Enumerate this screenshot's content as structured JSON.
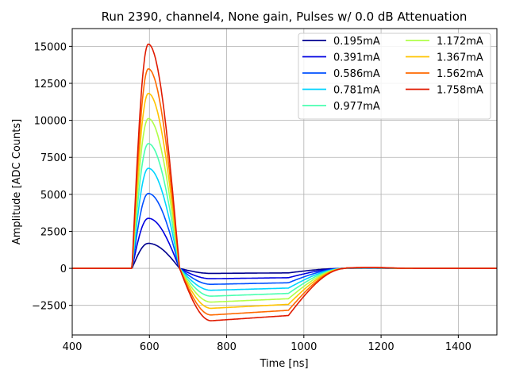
{
  "chart_data": {
    "type": "line",
    "title": "Run 2390, channel4, None gain, Pulses w/ 0.0 dB Attenuation",
    "xlabel": "Time [ns]",
    "ylabel": "Amplitude [ADC Counts]",
    "xlim": [
      400,
      1500
    ],
    "ylim": [
      -4500,
      16200
    ],
    "xticks": [
      400,
      600,
      800,
      1000,
      1200,
      1400
    ],
    "yticks": [
      -2500,
      0,
      2500,
      5000,
      7500,
      10000,
      12500,
      15000
    ],
    "xtick_labels": [
      "400",
      "600",
      "800",
      "1000",
      "1200",
      "1400"
    ],
    "ytick_labels": [
      "−2500",
      "0",
      "2500",
      "5000",
      "7500",
      "10000",
      "12500",
      "15000"
    ],
    "grid": true,
    "legend_position": "top-right",
    "legend_columns": 2,
    "pulse_shape": {
      "baseline_end": 555,
      "peak_time": 597,
      "zero_cross": 678,
      "trough_start": 760,
      "trough_end": 960,
      "recovery_end": 1110,
      "overshoot_time": 1170
    },
    "series": [
      {
        "name": "0.195mA",
        "color": "#00008f",
        "peak": 1690,
        "trough": -340
      },
      {
        "name": "0.391mA",
        "color": "#0000e0",
        "peak": 3380,
        "trough": -700
      },
      {
        "name": "0.586mA",
        "color": "#0050ff",
        "peak": 5060,
        "trough": -1080
      },
      {
        "name": "0.781mA",
        "color": "#00d4ff",
        "peak": 6760,
        "trough": -1480
      },
      {
        "name": "0.977mA",
        "color": "#4affb0",
        "peak": 8430,
        "trough": -1880
      },
      {
        "name": "1.172mA",
        "color": "#b0ff48",
        "peak": 10120,
        "trough": -2280
      },
      {
        "name": "1.367mA",
        "color": "#ffc400",
        "peak": 11820,
        "trough": -2700
      },
      {
        "name": "1.562mA",
        "color": "#ff6a00",
        "peak": 13480,
        "trough": -3150
      },
      {
        "name": "1.758mA",
        "color": "#e01a00",
        "peak": 15150,
        "trough": -3540
      }
    ]
  }
}
